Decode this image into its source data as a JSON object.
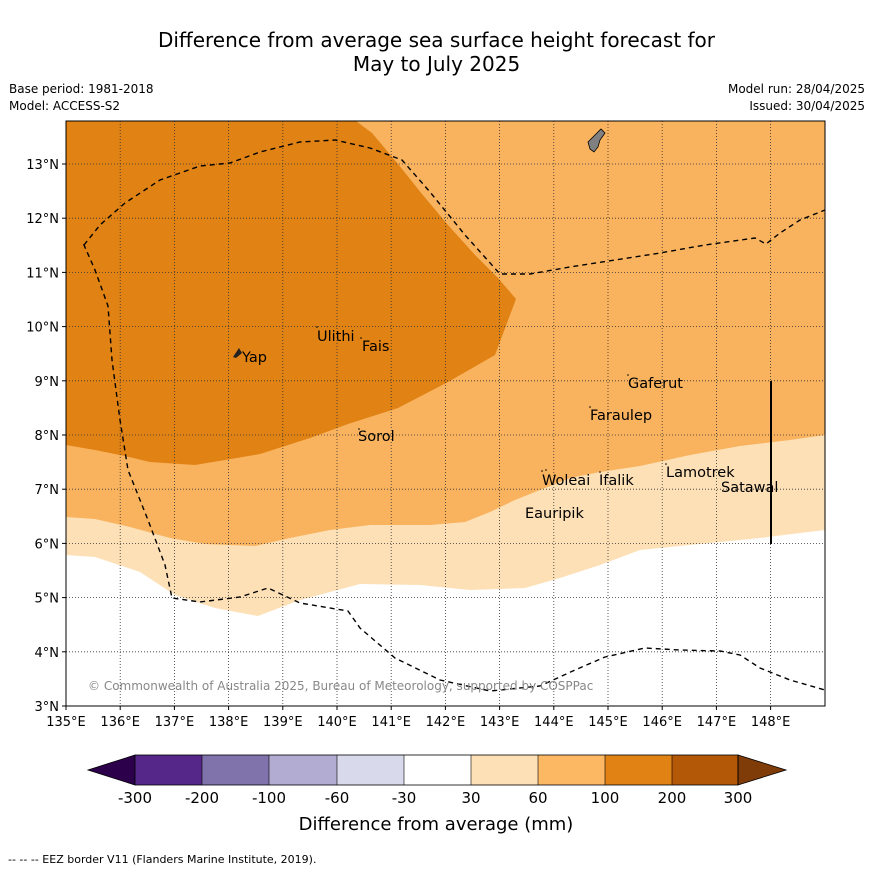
{
  "title": {
    "line1": "Difference from average sea surface height forecast for",
    "line2": "May to July 2025"
  },
  "meta": {
    "base_period": "Base period: 1981-2018",
    "model": "Model: ACCESS-S2",
    "model_run": "Model run: 28/04/2025",
    "issued": "Issued: 30/04/2025"
  },
  "map": {
    "copyright": "© Commonwealth of Australia 2025, Bureau of Meteorology, supported by COSPPac",
    "lon_ticks": [
      "135°E",
      "136°E",
      "137°E",
      "138°E",
      "139°E",
      "140°E",
      "141°E",
      "142°E",
      "143°E",
      "144°E",
      "145°E",
      "146°E",
      "147°E",
      "148°E"
    ],
    "lat_ticks": [
      "3°N",
      "4°N",
      "5°N",
      "6°N",
      "7°N",
      "8°N",
      "9°N",
      "10°N",
      "11°N",
      "12°N",
      "13°N"
    ],
    "places": [
      "Yap",
      "Ulithi",
      "Fais",
      "Sorol",
      "Gaferut",
      "Faraulep",
      "Woleai",
      "Ifalik",
      "Lamotrek",
      "Satawal",
      "Eauripik"
    ],
    "colors": {
      "band_30_60": "#fde0b6",
      "band_60_100": "#f9b35e",
      "band_100_200": "#e08214",
      "land": "#808080"
    }
  },
  "colorbar": {
    "label": "Difference from average (mm)",
    "tick_labels": [
      "-300",
      "-200",
      "-100",
      "-60",
      "-30",
      "30",
      "60",
      "100",
      "200",
      "300"
    ],
    "colors": [
      "#2d004b",
      "#542788",
      "#8073ac",
      "#b2abd2",
      "#d8daeb",
      "#ffffff",
      "#fee0b6",
      "#fdb863",
      "#e08214",
      "#b35806",
      "#7f3b08"
    ]
  },
  "footnote": "-- -- -- EEZ border V11 (Flanders Marine Institute, 2019)."
}
